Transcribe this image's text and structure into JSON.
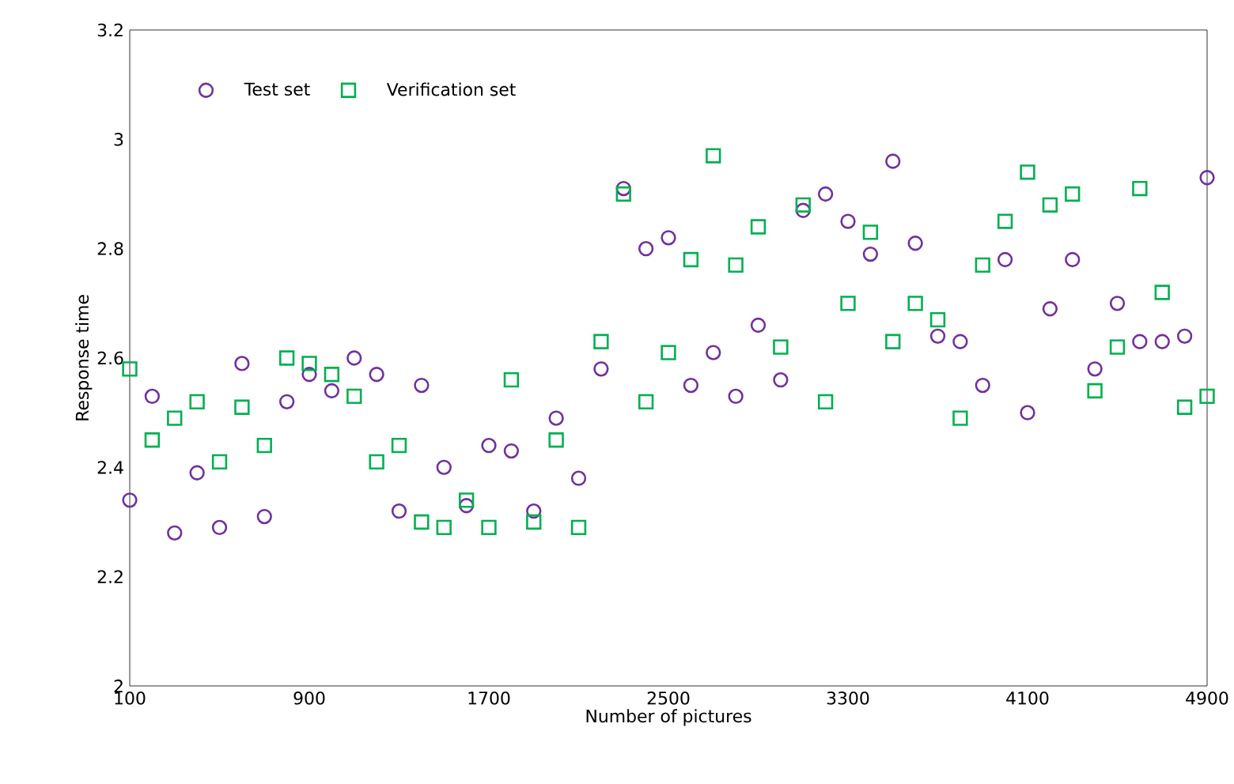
{
  "chart_data": {
    "type": "scatter",
    "xlabel": "Number of pictures",
    "ylabel": "Response time",
    "x": [
      100,
      200,
      300,
      400,
      500,
      600,
      700,
      800,
      900,
      1000,
      1100,
      1200,
      1300,
      1400,
      1500,
      1600,
      1700,
      1800,
      1900,
      2000,
      2100,
      2200,
      2300,
      2400,
      2500,
      2600,
      2700,
      2800,
      2900,
      3000,
      3100,
      3200,
      3300,
      3400,
      3500,
      3600,
      3700,
      3800,
      3900,
      4000,
      4100,
      4200,
      4300,
      4400,
      4500,
      4600,
      4700,
      4800,
      4900
    ],
    "series": [
      {
        "name": "Test set",
        "color": "#7030a0",
        "marker": "circle",
        "values": [
          2.34,
          2.53,
          2.28,
          2.39,
          2.29,
          2.59,
          2.31,
          2.52,
          2.57,
          2.54,
          2.6,
          2.57,
          2.32,
          2.55,
          2.4,
          2.33,
          2.44,
          2.43,
          2.32,
          2.49,
          2.38,
          2.58,
          2.91,
          2.8,
          2.82,
          2.55,
          2.61,
          2.53,
          2.66,
          2.56,
          2.87,
          2.9,
          2.85,
          2.79,
          2.96,
          2.81,
          2.64,
          2.63,
          2.55,
          2.78,
          2.5,
          2.69,
          2.78,
          2.58,
          2.7,
          2.63,
          2.63,
          2.64,
          2.93
        ]
      },
      {
        "name": "Verification set",
        "color": "#00b050",
        "marker": "square",
        "values": [
          2.58,
          2.45,
          2.49,
          2.52,
          2.41,
          2.51,
          2.44,
          2.6,
          2.59,
          2.57,
          2.53,
          2.41,
          2.44,
          2.3,
          2.29,
          2.34,
          2.29,
          2.56,
          2.3,
          2.45,
          2.29,
          2.63,
          2.9,
          2.52,
          2.61,
          2.78,
          2.97,
          2.77,
          2.84,
          2.62,
          2.88,
          2.52,
          2.7,
          2.83,
          2.63,
          2.7,
          2.67,
          2.49,
          2.77,
          2.85,
          2.94,
          2.88,
          2.9,
          2.54,
          2.62,
          2.91,
          2.72,
          2.51,
          2.53
        ]
      }
    ],
    "xlim": [
      100,
      4900
    ],
    "xticks": [
      100,
      900,
      1700,
      2500,
      3300,
      4100,
      4900
    ],
    "ylim": [
      2,
      3.2
    ],
    "yticks": [
      {
        "value": 2,
        "label": "2"
      },
      {
        "value": 2.2,
        "label": "2.2"
      },
      {
        "value": 2.4,
        "label": "2.4"
      },
      {
        "value": 2.6,
        "label": "2.6"
      },
      {
        "value": 2.8,
        "label": "2.8"
      },
      {
        "value": 3,
        "label": "3"
      },
      {
        "value": 3.2,
        "label": "3.2"
      }
    ],
    "grid": false,
    "legend": "top left"
  }
}
